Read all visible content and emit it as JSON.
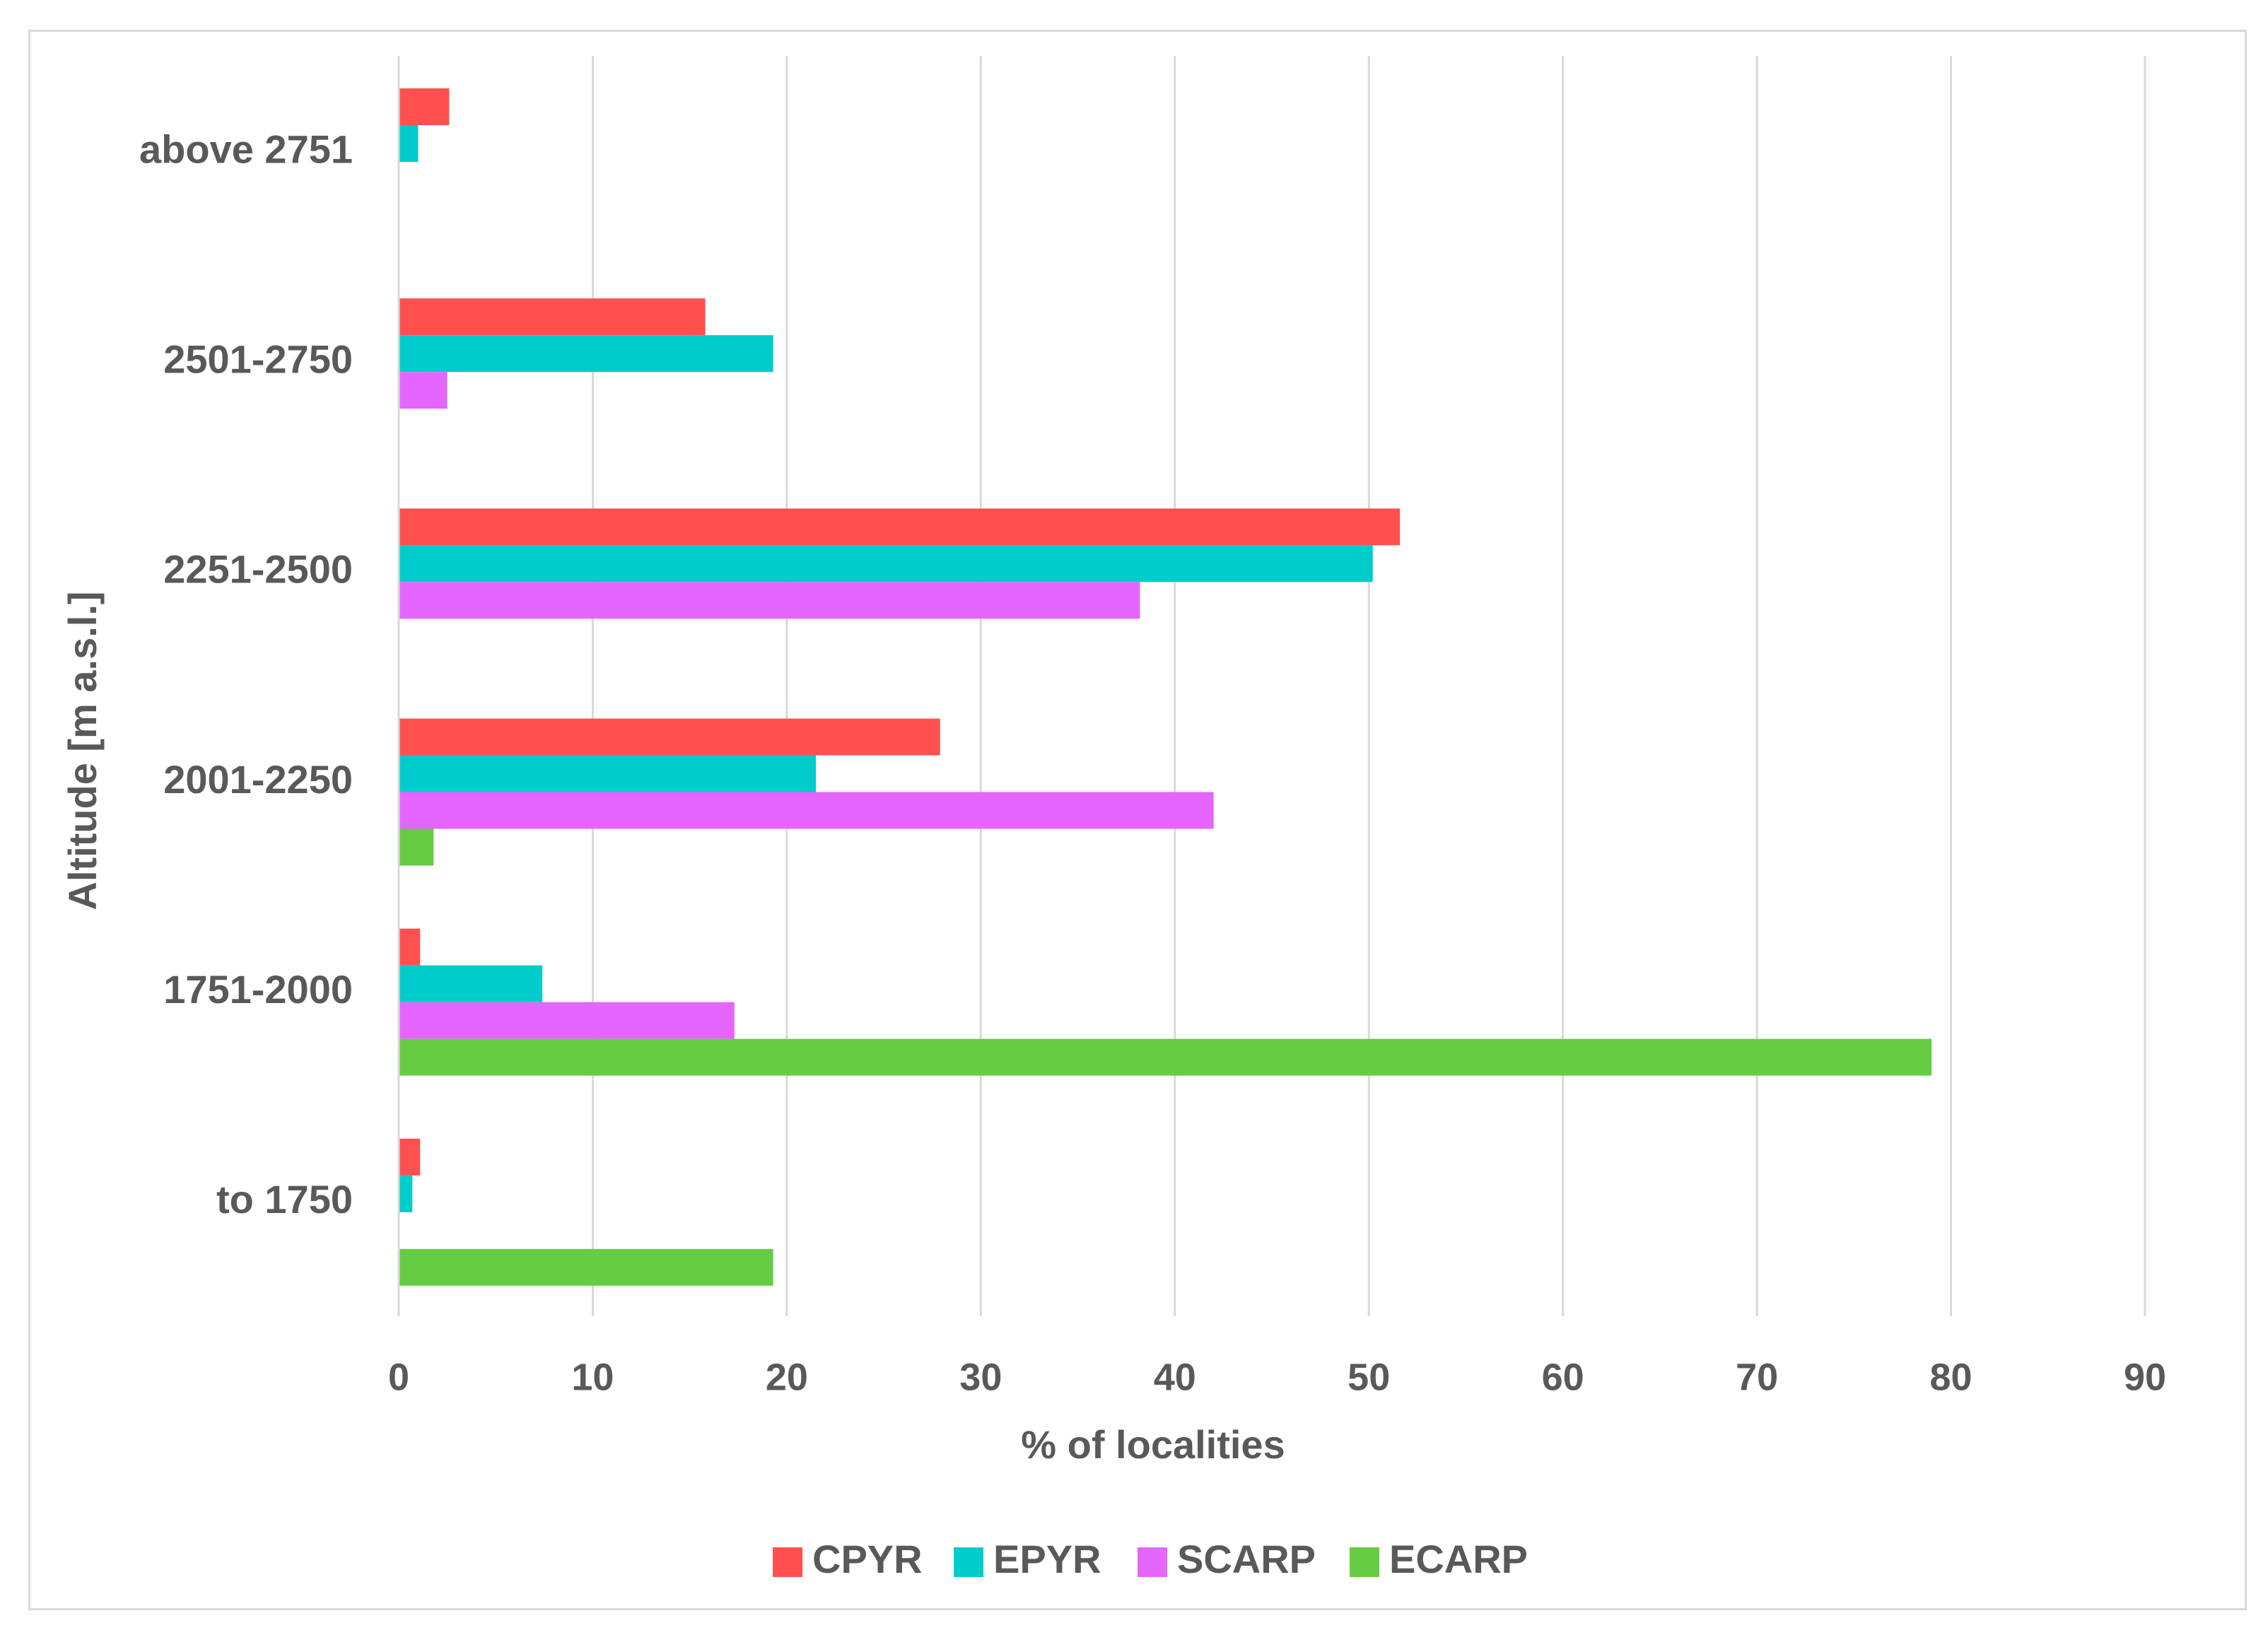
{
  "chart_data": {
    "type": "bar",
    "orientation": "horizontal",
    "title": "",
    "xlabel": "% of localities",
    "ylabel": "Altitude [m a.s.l.]",
    "xlim": [
      0,
      90
    ],
    "x_ticks": [
      "0",
      "10",
      "20",
      "30",
      "40",
      "50",
      "60",
      "70",
      "80",
      "90"
    ],
    "grid": true,
    "legend_position": "bottom",
    "categories": [
      "above 2751",
      "2501-2750",
      "2251-2500",
      "2001-2250",
      "1751-2000",
      "to  1750"
    ],
    "series": [
      {
        "name": "CPYR",
        "color": "#ff5050",
        "values": [
          2.6,
          15.8,
          51.6,
          27.9,
          1.1,
          1.1
        ]
      },
      {
        "name": "EPYR",
        "color": "#00cccc",
        "values": [
          1.0,
          19.3,
          50.2,
          21.5,
          7.4,
          0.7
        ]
      },
      {
        "name": "SCARP",
        "color": "#e466ff",
        "values": [
          0,
          2.5,
          38.2,
          42.0,
          17.3,
          0
        ]
      },
      {
        "name": "ECARP",
        "color": "#66cc44",
        "values": [
          0,
          0,
          0,
          1.8,
          79.0,
          19.3
        ]
      }
    ]
  }
}
